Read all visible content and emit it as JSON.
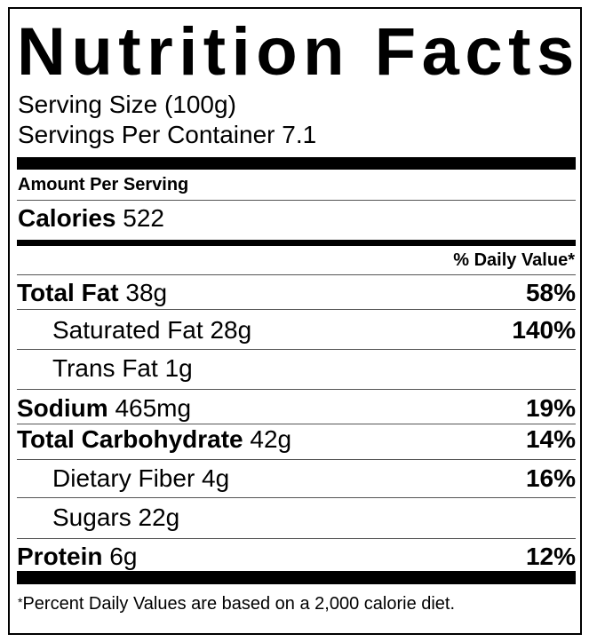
{
  "title": "Nutrition Facts",
  "serving_size": "Serving Size  (100g)",
  "servings_per_container": "Servings Per Container 7.1",
  "amount_per_serving": "Amount Per Serving",
  "calories": {
    "label": "Calories",
    "value": "522"
  },
  "daily_value_header": "% Daily Value*",
  "nutrients": [
    {
      "label": "Total Fat",
      "amount": "38g",
      "dv": "58%"
    },
    {
      "label": "Saturated Fat",
      "amount": "28g",
      "dv": "140%"
    },
    {
      "label": "Trans Fat",
      "amount": "1g",
      "dv": ""
    },
    {
      "label": "Sodium",
      "amount": "465mg",
      "dv": "19%"
    },
    {
      "label": "Total Carbohydrate",
      "amount": "42g",
      "dv": "14%"
    },
    {
      "label": "Dietary Fiber",
      "amount": "4g",
      "dv": "16%"
    },
    {
      "label": "Sugars",
      "amount": "22g",
      "dv": ""
    },
    {
      "label": "Protein",
      "amount": "6g",
      "dv": "12%"
    }
  ],
  "footnote_mark": "*",
  "footnote": "Percent Daily Values are based on a 2,000 calorie diet."
}
